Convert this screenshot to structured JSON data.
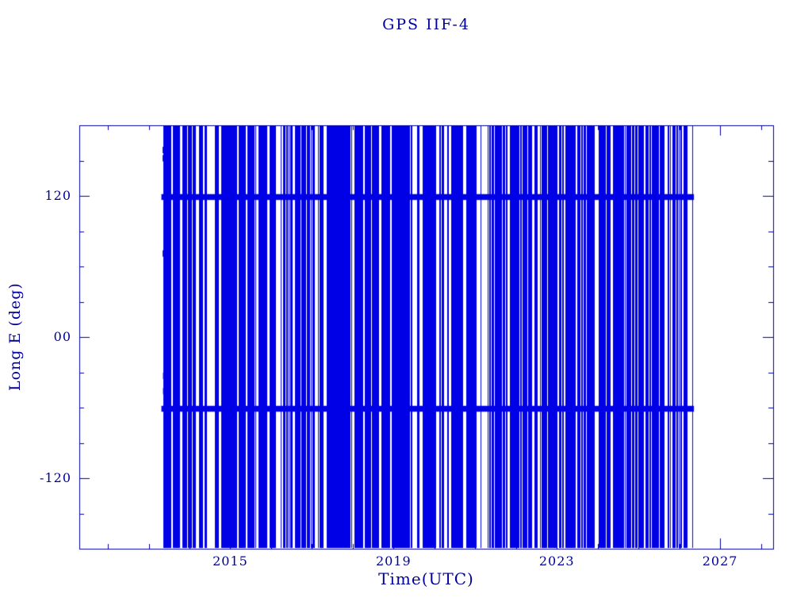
{
  "figure": {
    "background": "#ffffff"
  },
  "chart_data": {
    "type": "line",
    "title": "GPS IIF-4",
    "xlabel": "Time(UTC)",
    "ylabel": "Long E (deg)",
    "xlim": [
      2011.3,
      2028.3
    ],
    "ylim": [
      -180,
      180
    ],
    "x_ticks": [
      {
        "v": 2015,
        "label": "2015"
      },
      {
        "v": 2019,
        "label": "2019"
      },
      {
        "v": 2023,
        "label": "2023"
      },
      {
        "v": 2027,
        "label": "2027"
      }
    ],
    "x_minor_step": 1,
    "y_ticks": [
      {
        "v": 120,
        "label": "120"
      },
      {
        "v": 0,
        "label": "00"
      },
      {
        "v": -120,
        "label": "-120"
      }
    ],
    "y_minor_step": 30,
    "grid": false,
    "legend": null,
    "axis_color": "#00009b",
    "text_color": "#00009b",
    "series_color": "#0000e6",
    "data_start": 2013.35,
    "data_end": 2026.32,
    "dense_bands": [
      {
        "lon": 119,
        "half_deg": 2.5
      },
      {
        "lon": -61,
        "half_deg": 2.5
      }
    ],
    "start_marks": [
      {
        "t": 2013.38,
        "lon": 159
      },
      {
        "t": 2013.38,
        "lon": 152
      },
      {
        "t": 2013.38,
        "lon": 71
      },
      {
        "t": 2013.39,
        "lon": -33
      },
      {
        "t": 2013.39,
        "lon": -46
      }
    ],
    "gaps": [
      [
        2013.54,
        2013.59
      ],
      [
        2014.32,
        2014.36
      ],
      [
        2016.1,
        2016.18
      ],
      [
        2017.06,
        2017.12
      ],
      [
        2017.97,
        2018.03
      ],
      [
        2019.45,
        2019.5
      ],
      [
        2020.23,
        2020.27
      ],
      [
        2021.02,
        2021.12
      ],
      [
        2021.145,
        2021.27
      ],
      [
        2021.78,
        2021.83
      ],
      [
        2023.0,
        2023.04
      ],
      [
        2023.95,
        2023.99
      ],
      [
        2024.31,
        2024.36
      ],
      [
        2025.63,
        2025.7
      ],
      [
        2026.05,
        2026.1
      ]
    ],
    "fill_skip_probability": 0.13,
    "fill_skip_cluster_probability": 0.45,
    "seed": 1337
  }
}
